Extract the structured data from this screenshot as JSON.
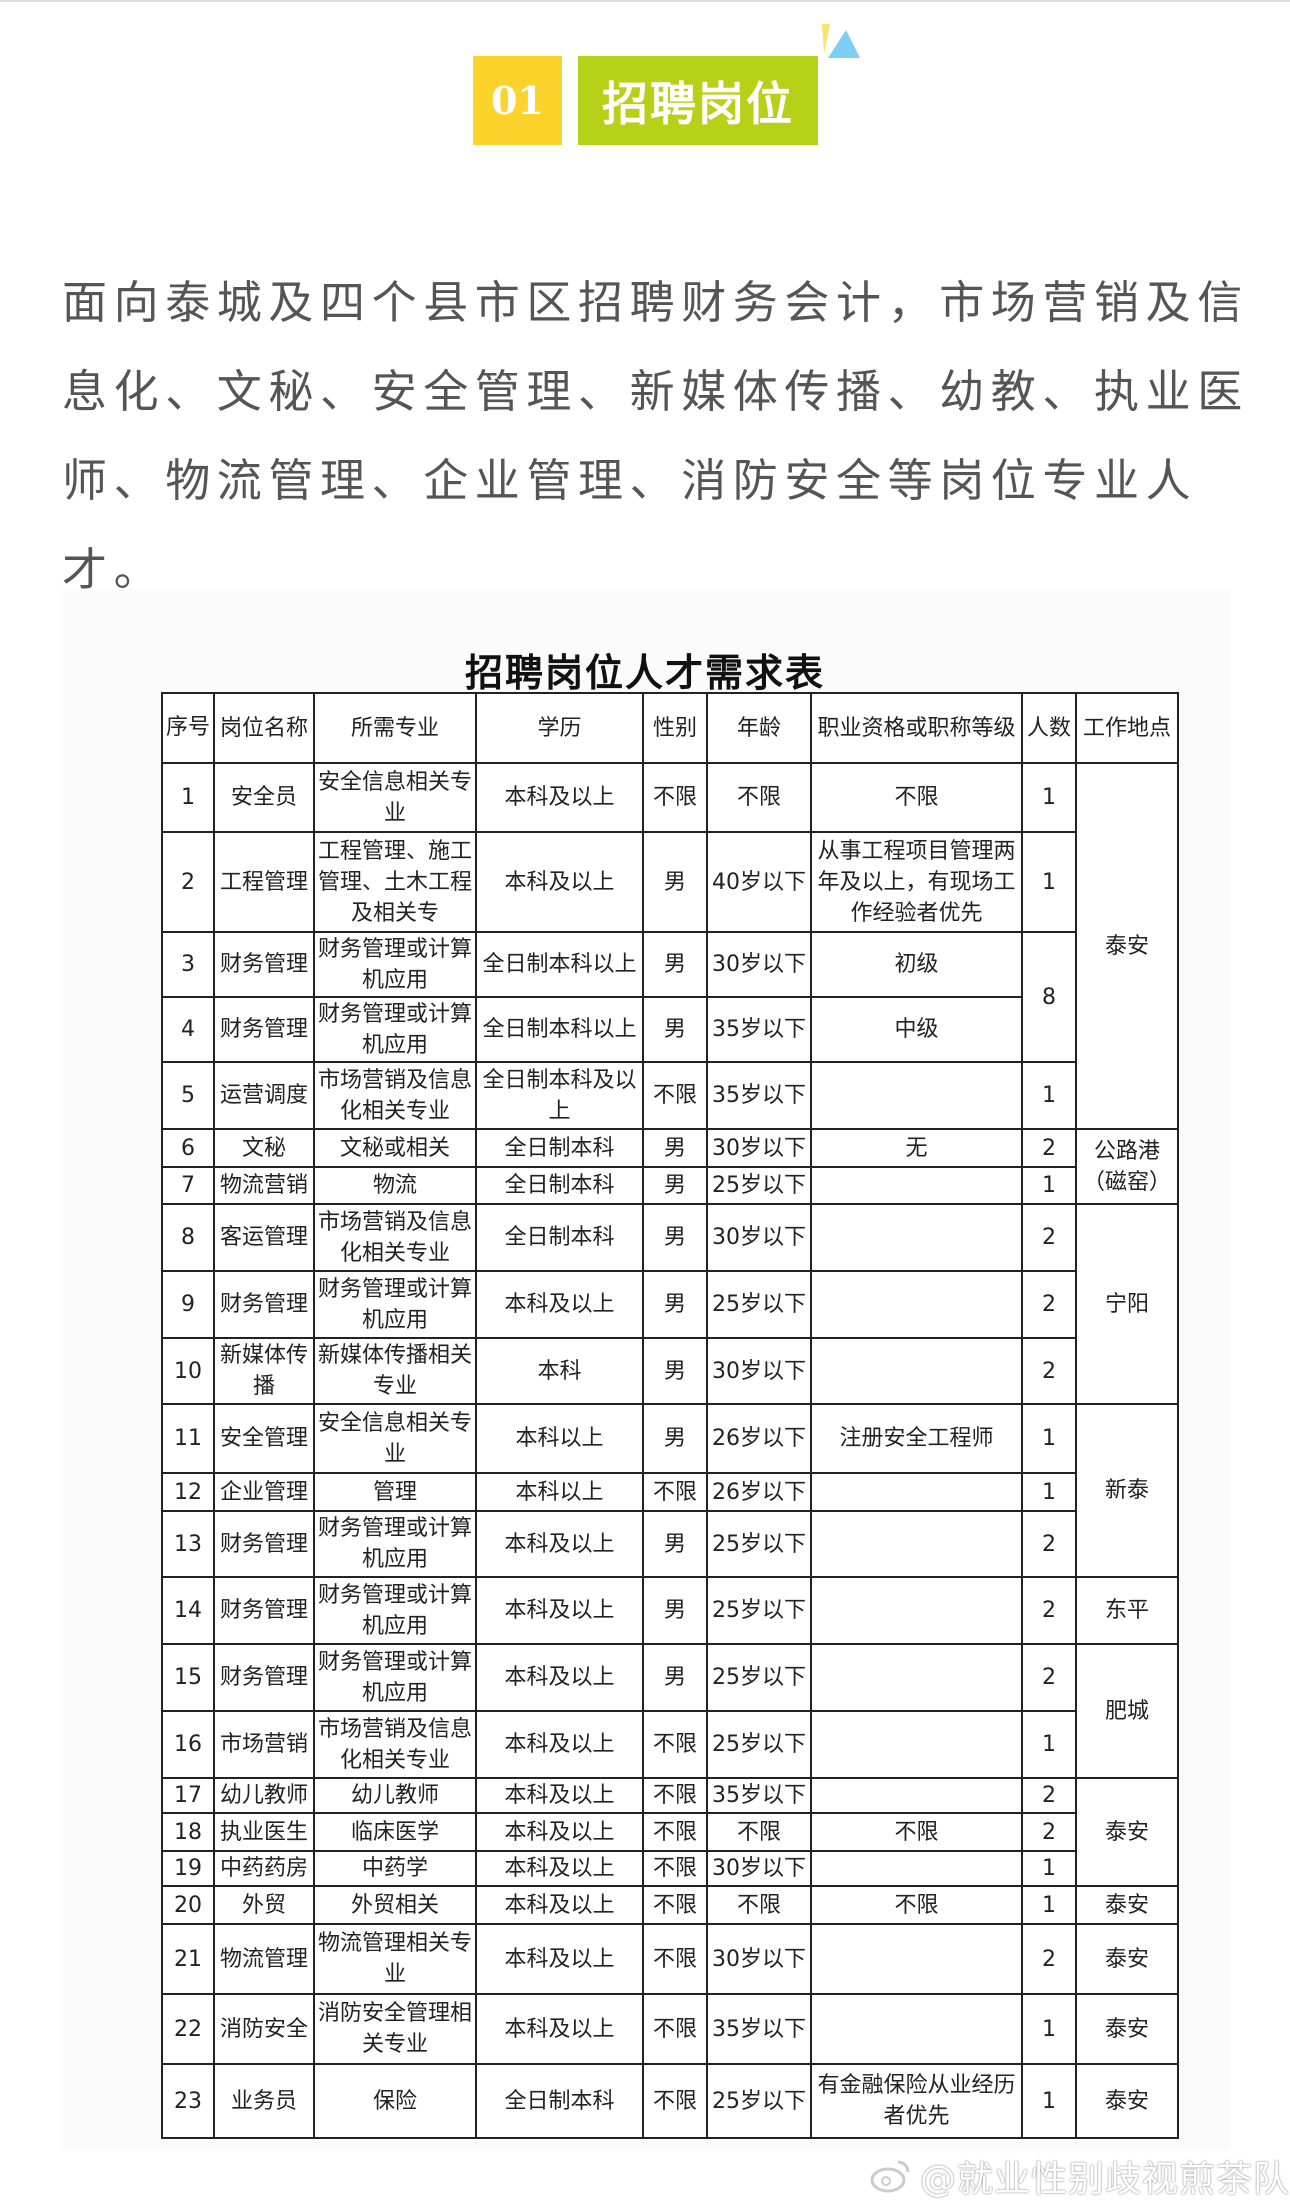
{
  "section": {
    "number": "01",
    "title": "招聘岗位"
  },
  "intro": "面向泰城及四个县市区招聘财务会计，市场营销及信息化、文秘、安全管理、新媒体传播、幼教、执业医师、物流管理、企业管理、消防安全等岗位专业人才。",
  "table": {
    "title": "招聘岗位人才需求表",
    "headers": [
      "序号",
      "岗位名称",
      "所需专业",
      "学历",
      "性别",
      "年龄",
      "职业资格或职称等级",
      "人数",
      "工作地点"
    ],
    "rows": [
      [
        "1",
        "安全员",
        "安全信息相关专业",
        "本科及以上",
        "不限",
        "不限",
        "不限",
        "1",
        "泰安"
      ],
      [
        "2",
        "工程管理",
        "工程管理、施工管理、土木工程及相关专",
        "本科及以上",
        "男",
        "40岁以下",
        "从事工程项目管理两年及以上，有现场工作经验者优先",
        "1",
        ""
      ],
      [
        "3",
        "财务管理",
        "财务管理或计算机应用",
        "全日制本科以上",
        "男",
        "30岁以下",
        "初级",
        "8",
        ""
      ],
      [
        "4",
        "财务管理",
        "财务管理或计算机应用",
        "全日制本科以上",
        "男",
        "35岁以下",
        "中级",
        "",
        ""
      ],
      [
        "5",
        "运营调度",
        "市场营销及信息化相关专业",
        "全日制本科及以上",
        "不限",
        "35岁以下",
        "",
        "1",
        ""
      ],
      [
        "6",
        "文秘",
        "文秘或相关",
        "全日制本科",
        "男",
        "30岁以下",
        "无",
        "2",
        "公路港（磁窑）"
      ],
      [
        "7",
        "物流营销",
        "物流",
        "全日制本科",
        "男",
        "25岁以下",
        "",
        "1",
        ""
      ],
      [
        "8",
        "客运管理",
        "市场营销及信息化相关专业",
        "全日制本科",
        "男",
        "30岁以下",
        "",
        "2",
        "宁阳"
      ],
      [
        "9",
        "财务管理",
        "财务管理或计算机应用",
        "本科及以上",
        "男",
        "25岁以下",
        "",
        "2",
        ""
      ],
      [
        "10",
        "新媒体传播",
        "新媒体传播相关专业",
        "本科",
        "男",
        "30岁以下",
        "",
        "2",
        ""
      ],
      [
        "11",
        "安全管理",
        "安全信息相关专业",
        "本科以上",
        "男",
        "26岁以下",
        "注册安全工程师",
        "1",
        "新泰"
      ],
      [
        "12",
        "企业管理",
        "管理",
        "本科以上",
        "不限",
        "26岁以下",
        "",
        "1",
        ""
      ],
      [
        "13",
        "财务管理",
        "财务管理或计算机应用",
        "本科及以上",
        "男",
        "25岁以下",
        "",
        "2",
        ""
      ],
      [
        "14",
        "财务管理",
        "财务管理或计算机应用",
        "本科及以上",
        "男",
        "25岁以下",
        "",
        "2",
        "东平"
      ],
      [
        "15",
        "财务管理",
        "财务管理或计算机应用",
        "本科及以上",
        "男",
        "25岁以下",
        "",
        "2",
        "肥城"
      ],
      [
        "16",
        "市场营销",
        "市场营销及信息化相关专业",
        "本科及以上",
        "不限",
        "25岁以下",
        "",
        "1",
        ""
      ],
      [
        "17",
        "幼儿教师",
        "幼儿教师",
        "本科及以上",
        "不限",
        "35岁以下",
        "",
        "2",
        "泰安"
      ],
      [
        "18",
        "执业医生",
        "临床医学",
        "本科及以上",
        "不限",
        "不限",
        "不限",
        "2",
        ""
      ],
      [
        "19",
        "中药药房",
        "中药学",
        "本科及以上",
        "不限",
        "30岁以下",
        "",
        "1",
        ""
      ],
      [
        "20",
        "外贸",
        "外贸相关",
        "本科及以上",
        "不限",
        "不限",
        "不限",
        "1",
        "泰安"
      ],
      [
        "21",
        "物流管理",
        "物流管理相关专业",
        "本科及以上",
        "不限",
        "30岁以下",
        "",
        "2",
        "泰安"
      ],
      [
        "22",
        "消防安全",
        "消防安全管理相关专业",
        "本科及以上",
        "不限",
        "35岁以下",
        "",
        "1",
        "泰安"
      ],
      [
        "23",
        "业务员",
        "保险",
        "全日制本科",
        "不限",
        "25岁以下",
        "有金融保险从业经历者优先",
        "1",
        "泰安"
      ]
    ]
  },
  "watermark": "@就业性别歧视煎茶队",
  "colors": {
    "badge_number": "#fcd32a",
    "badge_title": "#b5d118",
    "accent_blue": "#7ccff2"
  }
}
